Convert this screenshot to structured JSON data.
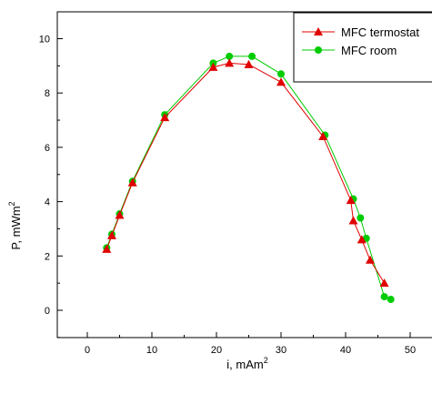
{
  "chart_data": {
    "type": "line",
    "xlabel": "i, mAm",
    "xlabel_sup": "2",
    "ylabel": "P, mWm",
    "ylabel_sup": "2",
    "xlim": [
      -5,
      53
    ],
    "ylim": [
      -1,
      11
    ],
    "x_ticks": [
      0,
      10,
      20,
      30,
      40,
      50
    ],
    "y_ticks": [
      0,
      2,
      4,
      6,
      8,
      10
    ],
    "legend_position": "top-right",
    "series": [
      {
        "name": "MFC termostat",
        "color": "#e00000",
        "marker": "triangle",
        "x": [
          3.0,
          3.8,
          5.0,
          7.0,
          12.0,
          19.5,
          22.0,
          25.0,
          30.0,
          36.5,
          40.8,
          41.2,
          42.5,
          43.8,
          46.0
        ],
        "y": [
          2.25,
          2.75,
          3.5,
          4.7,
          7.1,
          8.95,
          9.1,
          9.05,
          8.4,
          6.4,
          4.05,
          3.3,
          2.6,
          1.85,
          1.0
        ]
      },
      {
        "name": "MFC room",
        "color": "#00cc00",
        "marker": "circle",
        "x": [
          3.0,
          3.8,
          5.0,
          7.0,
          12.0,
          19.5,
          22.0,
          25.5,
          30.0,
          36.8,
          41.2,
          42.3,
          43.2,
          46.0,
          47.0
        ],
        "y": [
          2.3,
          2.8,
          3.55,
          4.75,
          7.2,
          9.1,
          9.35,
          9.35,
          8.7,
          6.45,
          4.1,
          3.4,
          2.65,
          0.5,
          0.4
        ]
      }
    ]
  }
}
